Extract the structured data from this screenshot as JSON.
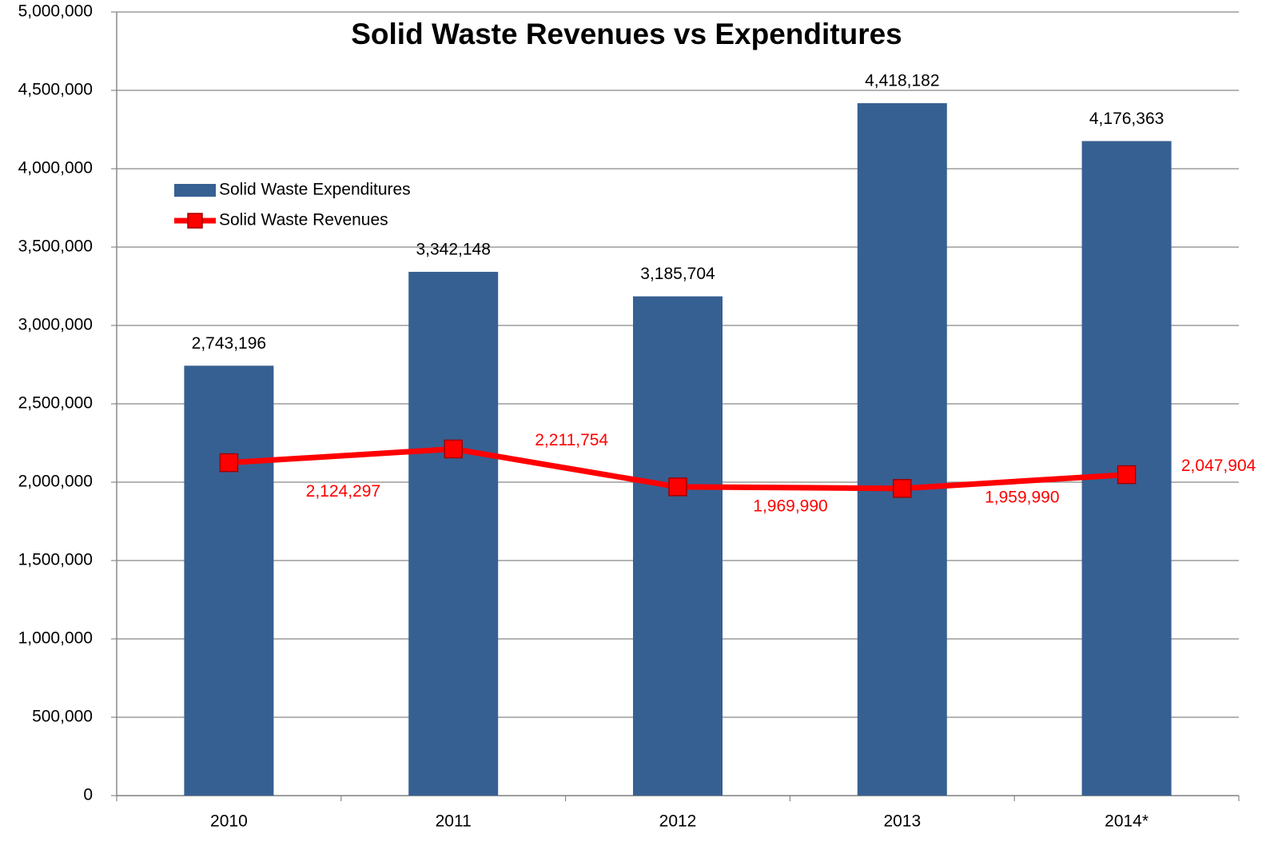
{
  "chart_data": {
    "type": "bar",
    "title": "Solid Waste Revenues vs Expenditures",
    "categories": [
      "2010",
      "2011",
      "2012",
      "2013",
      "2014*"
    ],
    "series": [
      {
        "name": "Solid Waste Expenditures",
        "type": "bar",
        "color": "#376092",
        "values": [
          2743196,
          3342148,
          3185704,
          4418182,
          4176363
        ],
        "value_labels": [
          "2,743,196",
          "3,342,148",
          "3,185,704",
          "4,418,182",
          "4,176,363"
        ]
      },
      {
        "name": "Solid Waste Revenues",
        "type": "line",
        "color": "#ff0000",
        "values": [
          2124297,
          2211754,
          1969990,
          1959990,
          2047904
        ],
        "value_labels": [
          "2,124,297",
          "2,211,754",
          "1,969,990",
          "1,959,990",
          "2,047,904"
        ]
      }
    ],
    "ylim": [
      0,
      5000000
    ],
    "yticks": [
      0,
      {
        "value": 500000,
        "label": "500,000"
      },
      {
        "value": 1000000,
        "label": "1,000,000"
      },
      {
        "value": 1500000,
        "label": "1,500,000"
      },
      {
        "value": 2000000,
        "label": "2,000,000"
      },
      {
        "value": 2500000,
        "label": "2,500,000"
      },
      {
        "value": 3000000,
        "label": "3,000,000"
      },
      {
        "value": 3500000,
        "label": "3,500,000"
      },
      {
        "value": 4000000,
        "label": "4,000,000"
      },
      {
        "value": 4500000,
        "label": "4,500,000"
      },
      {
        "value": 5000000,
        "label": "5,000,000"
      }
    ],
    "grid": true,
    "legend": "upper-left"
  }
}
